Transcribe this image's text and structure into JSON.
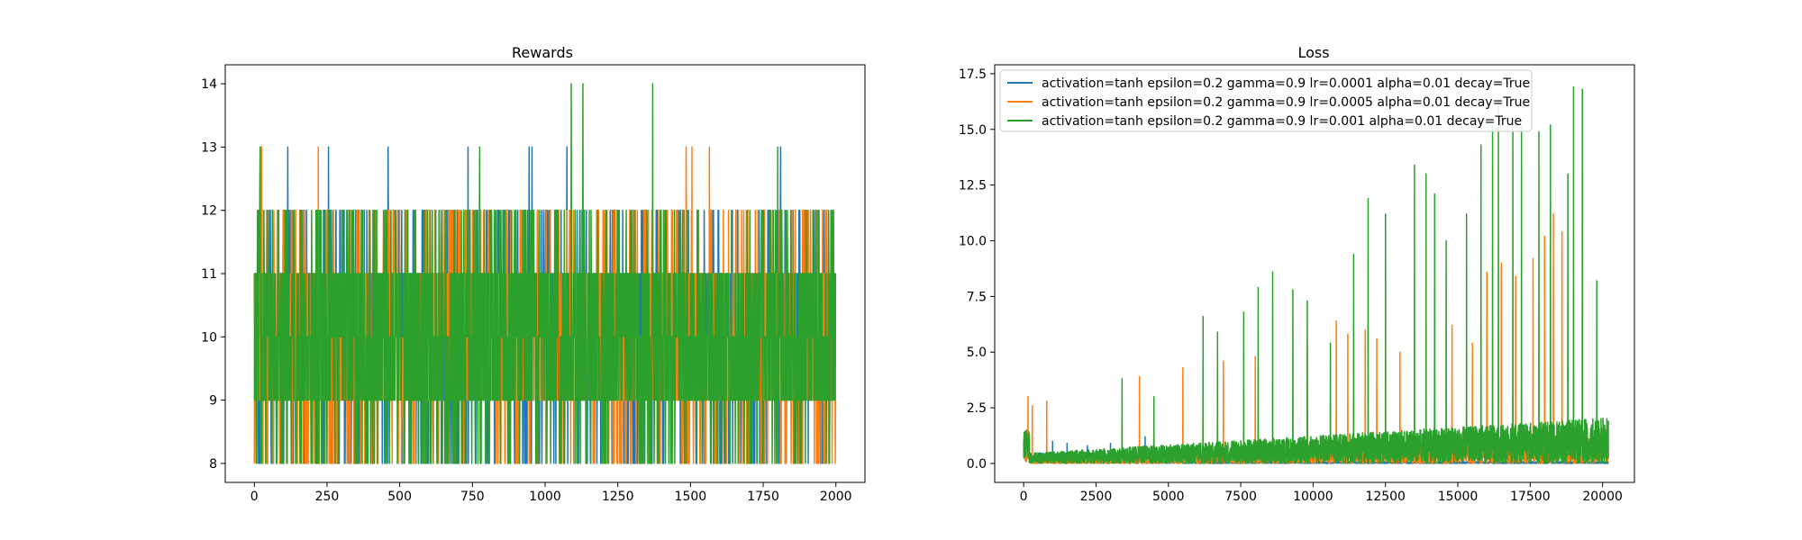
{
  "chart_data": [
    {
      "type": "line",
      "title": "Rewards",
      "xlabel": "",
      "ylabel": "",
      "xlim": [
        -100,
        2100
      ],
      "ylim": [
        7.7,
        14.3
      ],
      "xticks": [
        0,
        250,
        500,
        750,
        1000,
        1250,
        1500,
        1750,
        2000
      ],
      "xtick_labels": [
        "0",
        "250",
        "500",
        "750",
        "1000",
        "1250",
        "1500",
        "1750",
        "2000"
      ],
      "yticks": [
        8,
        9,
        10,
        11,
        12,
        13,
        14
      ],
      "ytick_labels": [
        "8",
        "9",
        "10",
        "11",
        "12",
        "13",
        "14"
      ],
      "grid": false,
      "legend": "none",
      "n_points": 2000,
      "value_range": [
        8,
        14
      ],
      "series": [
        {
          "color": "#1f77b4",
          "typical": [
            9,
            11
          ],
          "spikes": [
            [
              20,
              13
            ],
            [
              115,
              13
            ],
            [
              255,
              13
            ],
            [
              460,
              13
            ],
            [
              735,
              13
            ],
            [
              945,
              13
            ],
            [
              955,
              13
            ],
            [
              1075,
              13
            ],
            [
              1810,
              13
            ]
          ]
        },
        {
          "color": "#ff7f0e",
          "typical": [
            9,
            11
          ],
          "spikes": [
            [
              25,
              13
            ],
            [
              220,
              13
            ],
            [
              1485,
              13
            ],
            [
              1505,
              13
            ],
            [
              1565,
              13
            ]
          ]
        },
        {
          "color": "#2ca02c",
          "typical": [
            9,
            11
          ],
          "spikes": [
            [
              20,
              13
            ],
            [
              775,
              13
            ],
            [
              1090,
              14
            ],
            [
              1130,
              14
            ],
            [
              1370,
              14
            ],
            [
              1800,
              13
            ]
          ]
        }
      ]
    },
    {
      "type": "line",
      "title": "Loss",
      "xlabel": "",
      "ylabel": "",
      "xlim": [
        -1000,
        21100
      ],
      "ylim": [
        -0.85,
        17.9
      ],
      "xticks": [
        0,
        2500,
        5000,
        7500,
        10000,
        12500,
        15000,
        17500,
        20000
      ],
      "xtick_labels": [
        "0",
        "2500",
        "5000",
        "7500",
        "10000",
        "12500",
        "15000",
        "17500",
        "20000"
      ],
      "yticks": [
        0,
        2.5,
        5,
        7.5,
        10,
        12.5,
        15,
        17.5
      ],
      "ytick_labels": [
        "0.0",
        "2.5",
        "5.0",
        "7.5",
        "10.0",
        "12.5",
        "15.0",
        "17.5"
      ],
      "grid": false,
      "legend": "top-left",
      "series": [
        {
          "name": "activation=tanh epsilon=0.2 gamma=0.9 lr=0.0001 alpha=0.01 decay=True",
          "color": "#1f77b4",
          "spikes": [
            [
              1000,
              1.0
            ],
            [
              1500,
              0.9
            ],
            [
              2200,
              0.8
            ],
            [
              3000,
              0.9
            ],
            [
              4200,
              1.2
            ],
            [
              4800,
              0.8
            ],
            [
              5600,
              0.7
            ]
          ]
        },
        {
          "name": "activation=tanh epsilon=0.2 gamma=0.9 lr=0.0005 alpha=0.01 decay=True",
          "color": "#ff7f0e",
          "spikes": [
            [
              150,
              3.0
            ],
            [
              300,
              2.6
            ],
            [
              800,
              2.8
            ],
            [
              4000,
              3.9
            ],
            [
              5500,
              4.3
            ],
            [
              6900,
              4.6
            ],
            [
              8000,
              4.8
            ],
            [
              9800,
              5.2
            ],
            [
              10800,
              6.4
            ],
            [
              11200,
              5.8
            ],
            [
              11800,
              6.0
            ],
            [
              12200,
              5.6
            ],
            [
              13000,
              5.0
            ],
            [
              14200,
              6.8
            ],
            [
              14800,
              6.2
            ],
            [
              15500,
              5.4
            ],
            [
              16000,
              8.6
            ],
            [
              16500,
              9.0
            ],
            [
              17000,
              8.4
            ],
            [
              17600,
              9.2
            ],
            [
              18000,
              10.2
            ],
            [
              18300,
              11.2
            ],
            [
              18600,
              10.4
            ]
          ]
        },
        {
          "name": "activation=tanh epsilon=0.2 gamma=0.9 lr=0.001 alpha=0.01 decay=True",
          "color": "#2ca02c",
          "spikes": [
            [
              100,
              1.5
            ],
            [
              3400,
              3.8
            ],
            [
              4500,
              3.0
            ],
            [
              6200,
              6.6
            ],
            [
              6700,
              5.9
            ],
            [
              7600,
              6.8
            ],
            [
              8100,
              7.9
            ],
            [
              8600,
              8.6
            ],
            [
              9300,
              7.8
            ],
            [
              9800,
              7.3
            ],
            [
              10600,
              5.4
            ],
            [
              11400,
              9.4
            ],
            [
              11900,
              11.9
            ],
            [
              12500,
              11.2
            ],
            [
              13500,
              13.4
            ],
            [
              13900,
              13.0
            ],
            [
              14200,
              12.1
            ],
            [
              14600,
              10.0
            ],
            [
              15300,
              11.2
            ],
            [
              15800,
              14.3
            ],
            [
              16200,
              15.2
            ],
            [
              16400,
              16.3
            ],
            [
              16900,
              14.9
            ],
            [
              17200,
              15.1
            ],
            [
              17800,
              14.9
            ],
            [
              18200,
              15.2
            ],
            [
              18800,
              13.0
            ],
            [
              19000,
              16.9
            ],
            [
              19300,
              16.8
            ],
            [
              19800,
              8.2
            ]
          ]
        }
      ]
    }
  ]
}
